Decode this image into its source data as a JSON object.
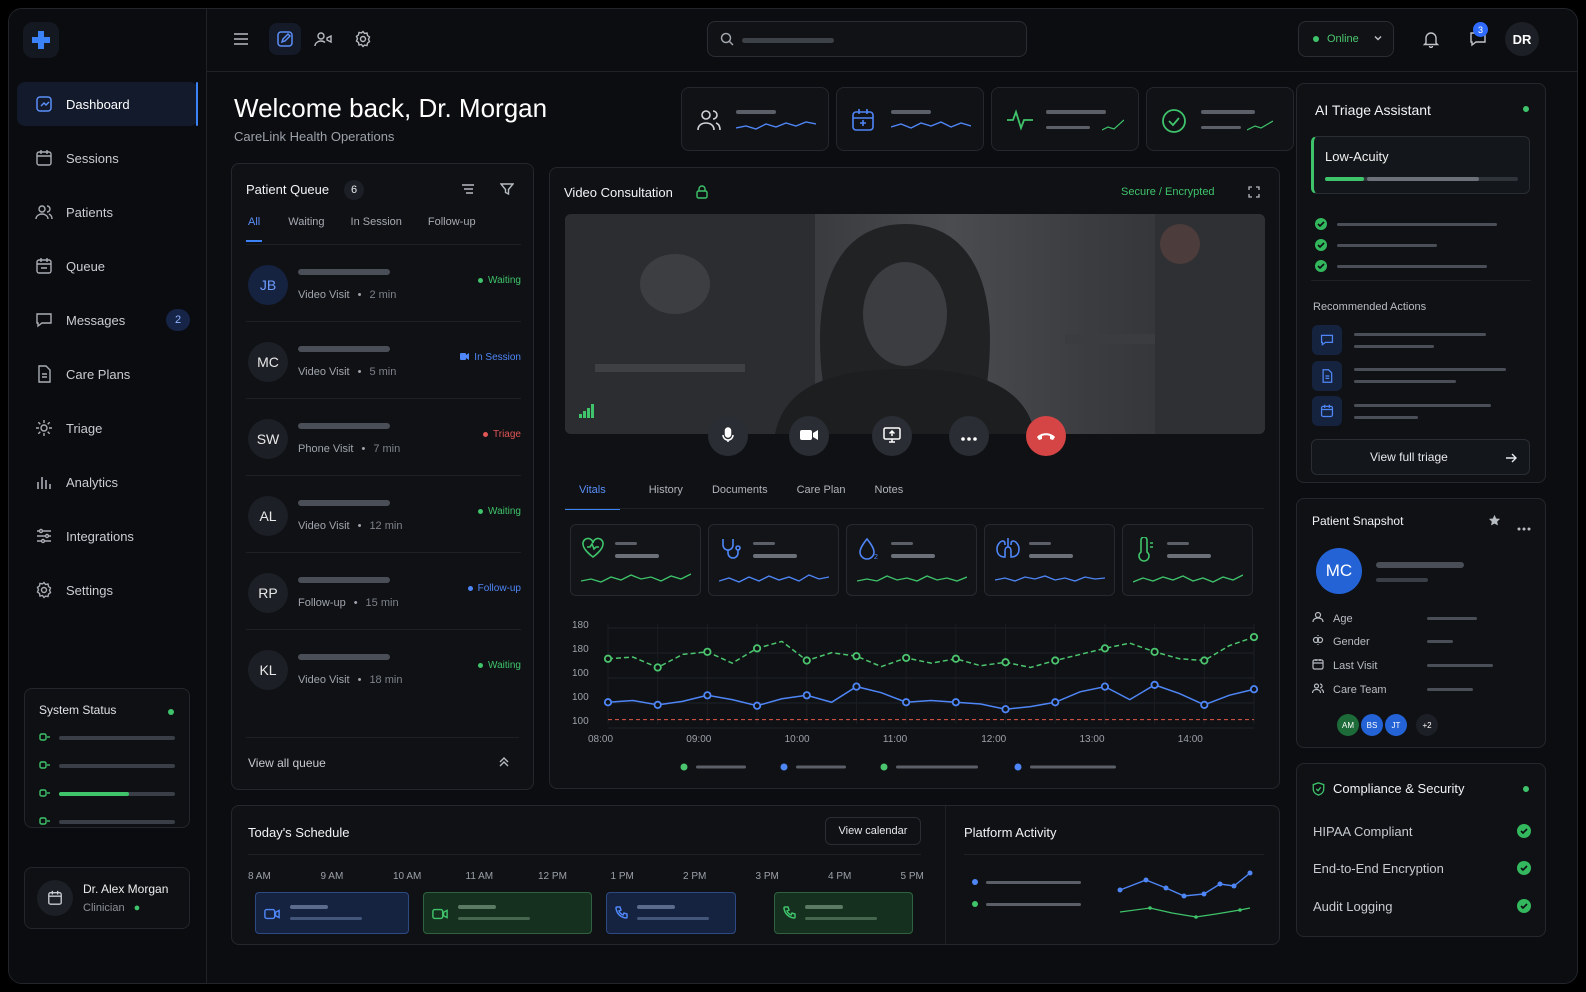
{
  "sidebar": {
    "items": [
      {
        "label": "Dashboard",
        "icon": "dashboard-icon",
        "active": true
      },
      {
        "label": "Sessions",
        "icon": "calendar-icon"
      },
      {
        "label": "Patients",
        "icon": "users-icon"
      },
      {
        "label": "Queue",
        "icon": "queue-icon"
      },
      {
        "label": "Messages",
        "icon": "chat-icon",
        "badge": "2"
      },
      {
        "label": "Care Plans",
        "icon": "document-icon"
      },
      {
        "label": "Triage",
        "icon": "gear-icon"
      },
      {
        "label": "Analytics",
        "icon": "bar-chart-icon"
      },
      {
        "label": "Integrations",
        "icon": "sliders-icon"
      },
      {
        "label": "Settings",
        "icon": "gear-icon"
      }
    ],
    "system_status": {
      "title": "System Status",
      "rows": [
        0.98,
        0.98,
        0.6,
        0.98
      ]
    },
    "user": {
      "name": "Dr. Alex Morgan",
      "role": "Clinician"
    }
  },
  "topbar": {
    "status": "Online",
    "notifications": "3",
    "initials": "DR"
  },
  "header": {
    "welcome": "Welcome back, Dr. Morgan",
    "subtitle": "CareLink Health Operations"
  },
  "queue": {
    "title": "Patient Queue",
    "count": "6",
    "tabs": [
      "All",
      "Waiting",
      "In Session",
      "Follow-up"
    ],
    "rows": [
      {
        "initials": "JB",
        "type": "Video Visit",
        "time": "2 min",
        "status": "Waiting",
        "color": "#3fc36b",
        "highlight": true
      },
      {
        "initials": "MC",
        "type": "Video Visit",
        "time": "5 min",
        "status": "In Session",
        "color": "#4f86f7"
      },
      {
        "initials": "SW",
        "type": "Phone Visit",
        "time": "7 min",
        "status": "Triage",
        "color": "#e05555"
      },
      {
        "initials": "AL",
        "type": "Video Visit",
        "time": "12 min",
        "status": "Waiting",
        "color": "#3fc36b"
      },
      {
        "initials": "RP",
        "type": "Follow-up",
        "time": "15 min",
        "status": "Follow-up",
        "color": "#4f86f7"
      },
      {
        "initials": "KL",
        "type": "Video Visit",
        "time": "18 min",
        "status": "Waiting",
        "color": "#3fc36b"
      }
    ],
    "view_all": "View all queue"
  },
  "consult": {
    "title": "Video Consultation",
    "secure": "Secure / Encrypted",
    "tabs": [
      "Vitals",
      "History",
      "Documents",
      "Care Plan",
      "Notes"
    ]
  },
  "chart_data": {
    "type": "line",
    "x": [
      "08:00",
      "08:15",
      "08:30",
      "08:45",
      "09:00",
      "09:15",
      "09:30",
      "09:45",
      "10:00",
      "10:15",
      "10:30",
      "10:45",
      "11:00",
      "11:15",
      "11:30",
      "11:45",
      "12:00",
      "12:15",
      "12:30",
      "12:45",
      "13:00",
      "13:15",
      "13:30",
      "13:45",
      "14:00",
      "14:15",
      "14:30"
    ],
    "xticks": [
      "08:00",
      "09:00",
      "10:00",
      "11:00",
      "12:00",
      "13:00",
      "14:00"
    ],
    "yticks": [
      "180",
      "180",
      "100",
      "100",
      "100"
    ],
    "series": [
      {
        "color": "#4cc56f",
        "values": [
          150,
          152,
          140,
          155,
          158,
          145,
          162,
          170,
          148,
          157,
          153,
          141,
          151,
          145,
          150,
          142,
          146,
          140,
          148,
          155,
          162,
          168,
          158,
          150,
          148,
          165,
          175
        ]
      },
      {
        "color": "#4f86f7",
        "values": [
          100,
          102,
          97,
          101,
          108,
          103,
          96,
          104,
          108,
          100,
          118,
          111,
          100,
          102,
          100,
          98,
          92,
          95,
          100,
          112,
          118,
          103,
          120,
          110,
          97,
          108,
          115
        ]
      },
      {
        "color": "#e05a4a",
        "values": [
          80,
          80,
          80,
          80,
          80,
          80,
          80,
          80,
          80,
          80,
          80,
          80,
          80,
          80,
          80,
          80,
          80,
          80,
          80,
          80,
          80,
          80,
          80,
          80,
          80,
          80,
          80
        ]
      }
    ],
    "ylim": [
      75,
      190
    ]
  },
  "schedule": {
    "title": "Today's Schedule",
    "button": "View calendar",
    "hours": [
      "8 AM",
      "9 AM",
      "10 AM",
      "11 AM",
      "12 PM",
      "1 PM",
      "2 PM",
      "3 PM",
      "4 PM",
      "5 PM"
    ]
  },
  "activity": {
    "title": "Platform Activity"
  },
  "triage": {
    "title": "AI Triage Assistant",
    "level": "Low-Acuity",
    "recommended": "Recommended Actions",
    "button": "View full triage"
  },
  "snapshot": {
    "title": "Patient Snapshot",
    "initials": "MC",
    "fields": [
      "Age",
      "Gender",
      "Last Visit",
      "Care Team"
    ],
    "team": [
      "AM",
      "BS",
      "JT",
      "+2"
    ]
  },
  "compliance": {
    "title": "Compliance & Security",
    "items": [
      "HIPAA Compliant",
      "End-to-End Encryption",
      "Audit Logging"
    ]
  }
}
